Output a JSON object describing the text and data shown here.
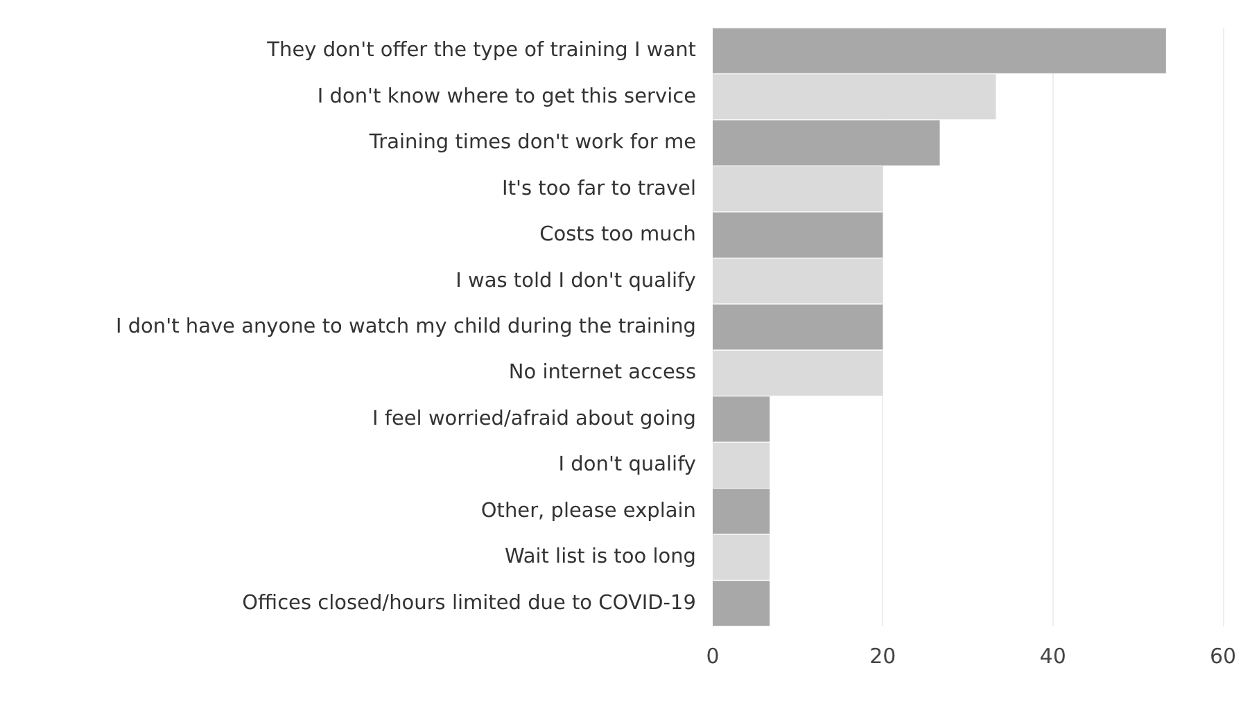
{
  "chart_data": {
    "type": "bar",
    "orientation": "horizontal",
    "categories": [
      "They don't offer the type of training I want",
      "I don't know where to get this service",
      "Training times don't work for me",
      "It's too far to travel",
      "Costs too much",
      "I was told I don't qualify",
      "I don't have anyone to watch my child during the training",
      "No internet access",
      "I feel worried/afraid about going",
      "I don't qualify",
      "Other, please explain",
      "Wait list is too long",
      "Offices closed/hours limited due to COVID-19"
    ],
    "values": [
      53.3,
      33.3,
      26.7,
      20,
      20,
      20,
      20,
      20,
      6.7,
      6.7,
      6.7,
      6.7,
      6.7
    ],
    "colors": [
      "#a8a8a8",
      "#dadada",
      "#a8a8a8",
      "#dadada",
      "#a8a8a8",
      "#dadada",
      "#a8a8a8",
      "#dadada",
      "#a8a8a8",
      "#dadada",
      "#a8a8a8",
      "#dadada",
      "#a8a8a8"
    ],
    "xlim": [
      0,
      60
    ],
    "xticks": [
      0,
      20,
      40,
      60
    ],
    "grid": "x"
  }
}
